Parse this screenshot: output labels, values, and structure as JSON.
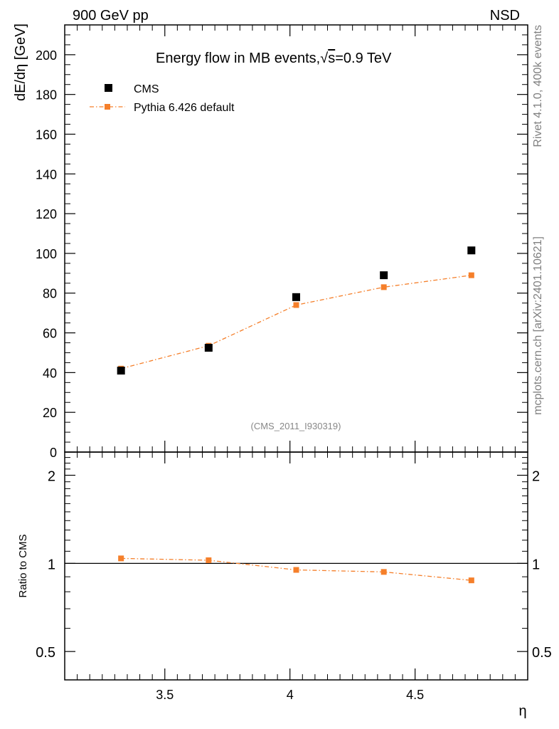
{
  "header": {
    "left": "900 GeV pp",
    "right": "NSD"
  },
  "side_text": {
    "top": "Rivet 4.1.0,  400k events",
    "bottom": "mcplots.cern.ch [arXiv:2401.10621]"
  },
  "colors": {
    "cms": "#000000",
    "pythia": "#f57f2a",
    "watermark": "#888888"
  },
  "chart_data": {
    "type": "scatter",
    "title": "Energy flow in MB events,√s=0.9 TeV",
    "title_prefix": "Energy flow in MB events,",
    "title_sqrt": "√",
    "title_s": "s",
    "title_suffix": "=0.9 TeV",
    "xlabel": "η",
    "xlim": [
      3.1,
      4.95
    ],
    "x_ticks": [
      3.5,
      4,
      4.5
    ],
    "x_tick_labels": [
      "3.5",
      "4",
      "4.5"
    ],
    "watermark": "(CMS_2011_I930319)",
    "legend": [
      "CMS",
      "Pythia 6.426 default"
    ],
    "main": {
      "ylabel": "dE/dη [GeV]",
      "ylim": [
        0,
        215
      ],
      "y_ticks": [
        0,
        20,
        40,
        60,
        80,
        100,
        120,
        140,
        160,
        180,
        200
      ],
      "y_tick_labels": [
        "0",
        "20",
        "40",
        "60",
        "80",
        "100",
        "120",
        "140",
        "160",
        "180",
        "200"
      ],
      "series": [
        {
          "name": "CMS",
          "style": "marker",
          "x": [
            3.325,
            3.675,
            4.025,
            4.375,
            4.725
          ],
          "y": [
            41,
            52.5,
            78,
            89,
            101.5
          ]
        },
        {
          "name": "Pythia 6.426 default",
          "style": "dashdot-line-marker",
          "x": [
            3.325,
            3.675,
            4.025,
            4.375,
            4.725
          ],
          "y": [
            42,
            53.5,
            74,
            83,
            89
          ]
        }
      ]
    },
    "ratio": {
      "ylabel": "Ratio to CMS",
      "scale": "log",
      "ylim": [
        0.4,
        2.4
      ],
      "reference": 1,
      "y_ticks": [
        0.5,
        1,
        2
      ],
      "y_tick_labels": [
        "0.5",
        "1",
        "2"
      ],
      "series": [
        {
          "name": "Pythia 6.426 default",
          "x": [
            3.325,
            3.675,
            4.025,
            4.375,
            4.725
          ],
          "y": [
            1.04,
            1.025,
            0.95,
            0.935,
            0.875
          ]
        }
      ]
    }
  }
}
